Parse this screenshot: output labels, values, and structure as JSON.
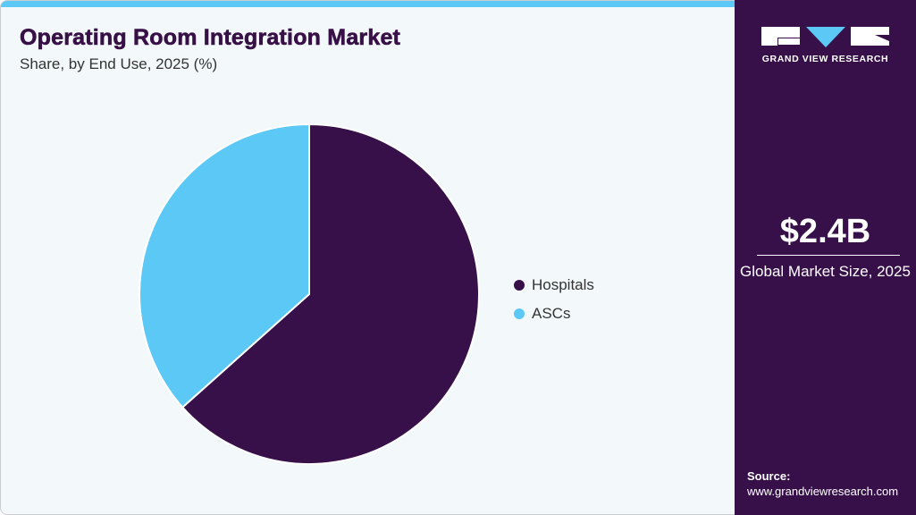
{
  "chart_data": {
    "type": "pie",
    "title": "Operating Room Integration Market",
    "subtitle": "Share, by End Use, 2025 (%)",
    "categories": [
      "Hospitals",
      "ASCs"
    ],
    "values": [
      63.4,
      36.6
    ],
    "colors": [
      "#37104a",
      "#5bc8f5"
    ],
    "start_angle": "12 o'clock, clockwise",
    "legend_position": "right"
  },
  "sidebar": {
    "brand": "GRAND VIEW RESEARCH",
    "market_size": "$2.4B",
    "market_size_label": "Global Market Size, 2025",
    "source_label": "Source:",
    "source_url": "www.grandviewresearch.com"
  }
}
